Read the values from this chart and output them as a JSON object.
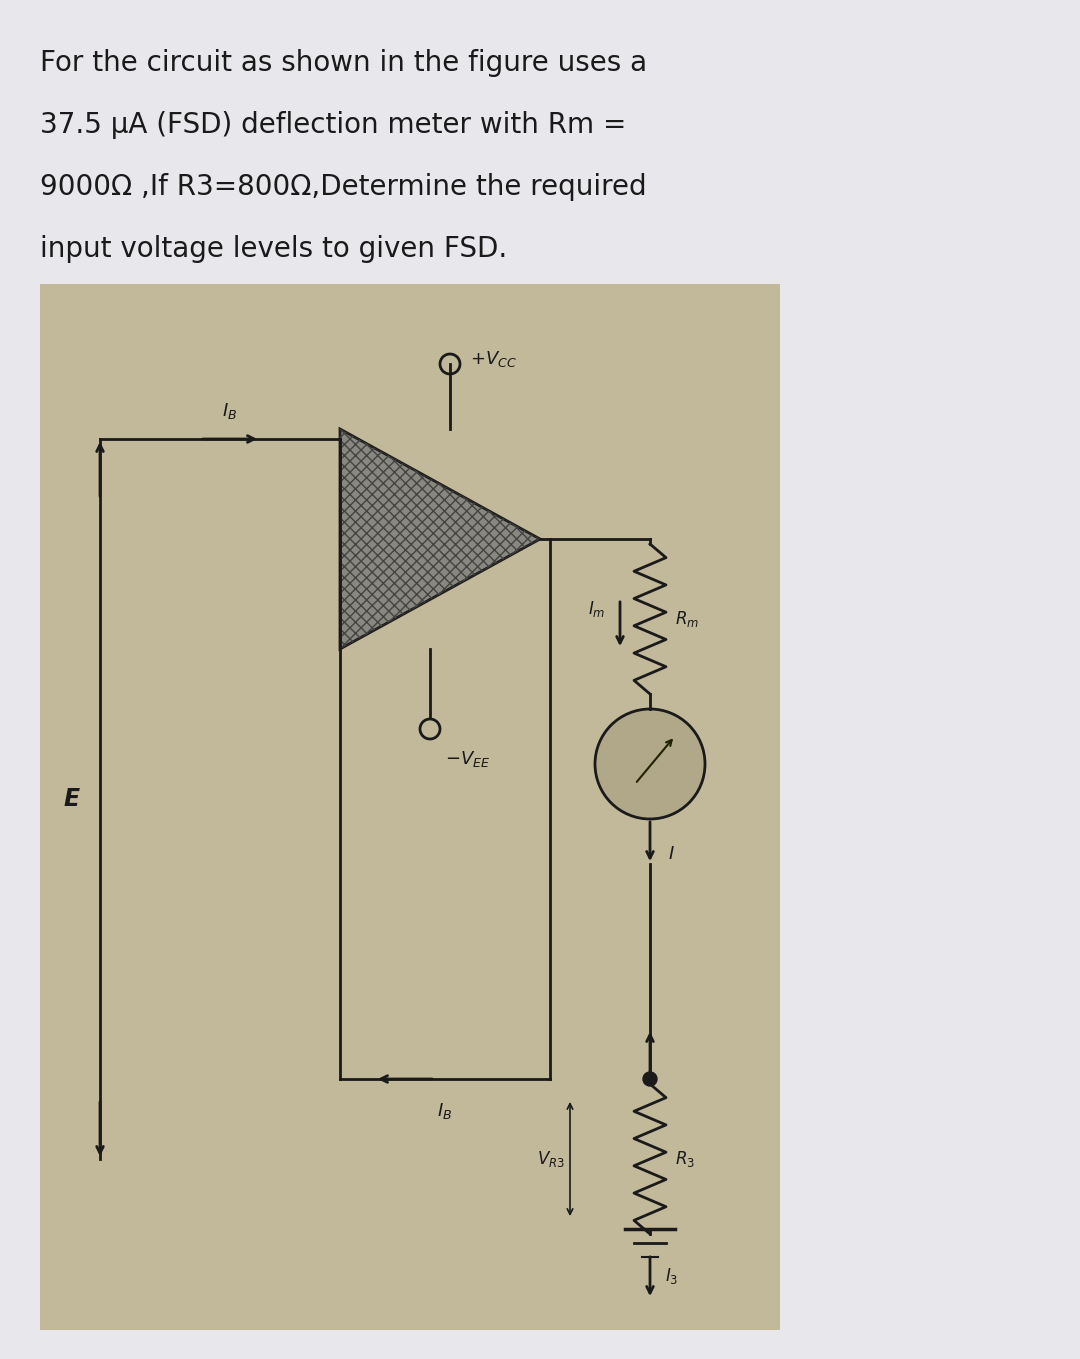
{
  "title_lines": [
    "For the circuit as shown in the figure uses a",
    "37.5 μA (FSD) deflection meter with Rm =",
    "9000Ω ,If R3=800Ω,Determine the required",
    "input voltage levels to given FSD."
  ],
  "bg_color": "#e8e8ec",
  "panel_bg": "#c2b89a",
  "text_color": "#1a1a1a",
  "title_fontsize": 20,
  "circuit_color": "#1a1a1a"
}
